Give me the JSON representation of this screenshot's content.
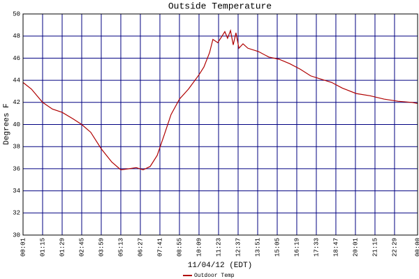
{
  "chart_data": {
    "type": "line",
    "title": "Outside Temperature",
    "xlabel": "11/04/12 (EDT)",
    "ylabel": "Degrees F",
    "x": [
      0,
      0.43,
      1,
      1.5,
      2,
      2.57,
      3,
      3.46,
      4,
      4.54,
      5,
      5.43,
      5.79,
      6.14,
      6.5,
      6.86,
      7.21,
      7.57,
      8,
      8.46,
      9,
      9.25,
      9.54,
      9.71,
      9.96,
      10.18,
      10.32,
      10.46,
      10.61,
      10.75,
      10.89,
      11.04,
      11.25,
      11.5,
      12.04,
      12.57,
      13.1,
      13.64,
      14.18,
      14.71,
      15.25,
      15.79,
      16.32,
      17.04,
      17.75,
      18.46,
      19.18,
      19.89,
      20.18
    ],
    "series": [
      {
        "name": "Outdoor Temp",
        "color": "#b00000",
        "values": [
          43.8,
          43.2,
          42.0,
          41.4,
          41.1,
          40.5,
          40.0,
          39.3,
          37.8,
          36.6,
          35.9,
          36.0,
          36.1,
          35.9,
          36.2,
          37.2,
          39.0,
          40.9,
          42.3,
          43.2,
          44.5,
          45.2,
          46.5,
          47.7,
          47.4,
          48.0,
          48.4,
          47.8,
          48.5,
          47.2,
          48.3,
          46.9,
          47.3,
          46.9,
          46.6,
          46.1,
          45.9,
          45.5,
          45.0,
          44.4,
          44.1,
          43.8,
          43.3,
          42.8,
          42.6,
          42.3,
          42.1,
          42.0,
          41.9
        ]
      }
    ],
    "xlim": [
      0,
      20.18
    ],
    "xticks": [
      {
        "value": 0,
        "label": "00:01"
      },
      {
        "value": 1,
        "label": "01:15"
      },
      {
        "value": 2,
        "label": "01:29"
      },
      {
        "value": 3,
        "label": "02:45"
      },
      {
        "value": 4,
        "label": "03:59"
      },
      {
        "value": 5,
        "label": "05:13"
      },
      {
        "value": 6,
        "label": "06:27"
      },
      {
        "value": 7,
        "label": "07:41"
      },
      {
        "value": 8,
        "label": "08:55"
      },
      {
        "value": 9,
        "label": "10:09"
      },
      {
        "value": 10,
        "label": "11:23"
      },
      {
        "value": 11,
        "label": "12:37"
      },
      {
        "value": 12,
        "label": "13:51"
      },
      {
        "value": 13,
        "label": "15:05"
      },
      {
        "value": 14,
        "label": "16:19"
      },
      {
        "value": 15,
        "label": "17:33"
      },
      {
        "value": 16,
        "label": "18:47"
      },
      {
        "value": 17,
        "label": "20:01"
      },
      {
        "value": 18,
        "label": "21:15"
      },
      {
        "value": 19,
        "label": "22:29"
      },
      {
        "value": 20.18,
        "label": "00:00"
      }
    ],
    "ylim": [
      30,
      50
    ],
    "yticks": [
      30,
      32,
      34,
      36,
      38,
      40,
      42,
      44,
      46,
      48,
      50
    ],
    "grid": true,
    "grid_color": "#000080"
  }
}
